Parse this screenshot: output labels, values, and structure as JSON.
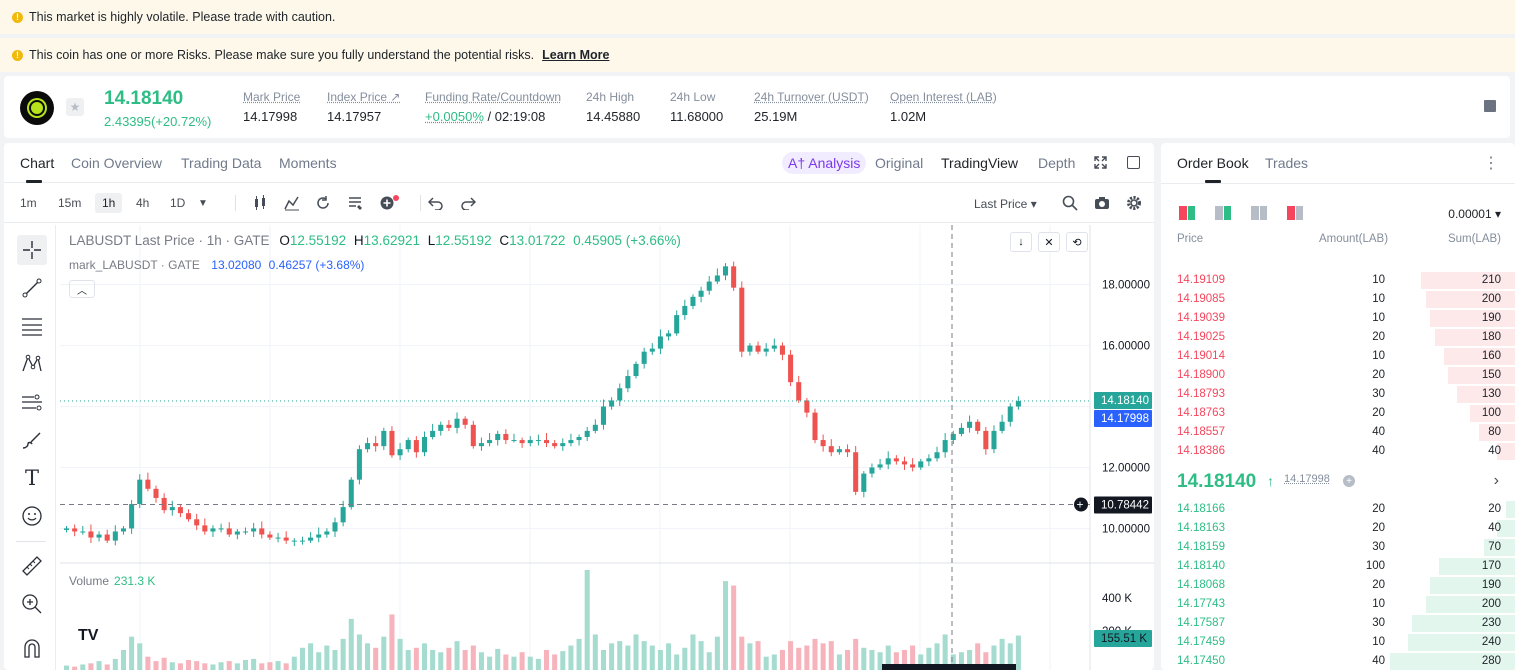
{
  "banners": {
    "volatile": "This market is highly volatile. Please trade with caution.",
    "risk": "This coin has one or more Risks. Please make sure you fully understand the potential risks.",
    "learn_more": "Learn More"
  },
  "ticker": {
    "last_price": "14.18140",
    "change": "2.43395(+20.72%)",
    "stats": [
      {
        "label": "Mark Price",
        "value": "14.17998"
      },
      {
        "label": "Index Price ↗",
        "value": "14.17957"
      },
      {
        "label": "Funding Rate/Countdown",
        "value_green": "+0.0050%",
        "value": " / 02:19:08"
      },
      {
        "label": "24h High",
        "value": "14.45880"
      },
      {
        "label": "24h Low",
        "value": "11.68000"
      },
      {
        "label": "24h Turnover (USDT)",
        "value": "25.19M"
      },
      {
        "label": "Open Interest (LAB)",
        "value": "1.02M"
      }
    ]
  },
  "chart_tabs": [
    "Chart",
    "Coin Overview",
    "Trading Data",
    "Moments"
  ],
  "view_tabs": {
    "analysis": "A† Analysis",
    "original": "Original",
    "tradingview": "TradingView",
    "depth": "Depth"
  },
  "timeframes": [
    "1m",
    "15m",
    "1h",
    "4h",
    "1D"
  ],
  "toolbar": {
    "last_price": "Last Price ▾"
  },
  "legend": {
    "symbol": "LABUSDT Last Price · 1h · GATE",
    "o_label": "O",
    "o": "12.55192",
    "h_label": "H",
    "h": "13.62921",
    "l_label": "L",
    "l": "12.55192",
    "c_label": "C",
    "c": "13.01722",
    "chg": "0.45905 (+3.66%)",
    "mark_symbol": "mark_LABUSDT · GATE",
    "mark_value": "13.02080",
    "mark_chg": "0.46257 (+3.68%)",
    "volume_label": "Volume",
    "volume_value": "231.3 K"
  },
  "chart_data": {
    "type": "candlestick",
    "y_ticks": [
      "18.00000",
      "16.00000",
      "12.00000",
      "10.00000"
    ],
    "volume_ticks": [
      "400 K",
      "200 K"
    ],
    "ylim": [
      8.8,
      19.3
    ],
    "last_price_tag": "14.18140",
    "mark_price_tag": "14.17998",
    "crosshair_tag": "10.78442",
    "volume_tag": "155.51 K",
    "last_price": 14.1814,
    "crosshair_price": 10.78442,
    "up_color": "#26a69a",
    "down_color": "#ef5350",
    "close_path": [
      10.0,
      9.9,
      9.9,
      9.7,
      9.8,
      9.6,
      9.9,
      10.0,
      10.8,
      11.6,
      11.3,
      11.0,
      10.6,
      10.7,
      10.5,
      10.3,
      10.1,
      9.9,
      10.0,
      10.0,
      9.8,
      9.9,
      9.9,
      10.0,
      9.8,
      9.7,
      9.7,
      9.6,
      9.6,
      9.6,
      9.7,
      9.8,
      9.9,
      10.2,
      10.7,
      11.6,
      12.6,
      12.8,
      12.7,
      13.2,
      12.4,
      12.6,
      12.9,
      12.5,
      13.0,
      13.2,
      13.4,
      13.3,
      13.6,
      13.4,
      12.7,
      12.8,
      12.9,
      13.1,
      12.9,
      12.9,
      12.8,
      12.9,
      12.9,
      12.8,
      12.7,
      12.8,
      12.9,
      13.0,
      13.2,
      13.4,
      14.0,
      14.2,
      14.6,
      15.0,
      15.4,
      15.8,
      15.9,
      16.3,
      16.4,
      17.0,
      17.3,
      17.6,
      17.8,
      18.1,
      18.3,
      18.6,
      17.9,
      15.8,
      16.0,
      15.8,
      15.9,
      16.0,
      15.7,
      14.8,
      14.2,
      13.8,
      12.9,
      12.7,
      12.5,
      12.6,
      12.5,
      11.2,
      11.8,
      12.0,
      12.1,
      12.3,
      12.2,
      12.1,
      12.0,
      12.2,
      12.3,
      12.5,
      12.9,
      13.1,
      13.3,
      13.5,
      13.2,
      12.6,
      13.2,
      13.5,
      14.0,
      14.18
    ],
    "volumes": [
      20,
      15,
      25,
      30,
      40,
      25,
      50,
      90,
      150,
      120,
      60,
      40,
      55,
      35,
      30,
      45,
      40,
      30,
      25,
      35,
      40,
      30,
      45,
      50,
      30,
      35,
      40,
      30,
      60,
      100,
      120,
      80,
      110,
      90,
      140,
      230,
      160,
      120,
      100,
      150,
      250,
      140,
      90,
      100,
      120,
      90,
      80,
      100,
      130,
      90,
      110,
      80,
      60,
      95,
      70,
      60,
      80,
      60,
      50,
      90,
      70,
      85,
      110,
      140,
      450,
      160,
      90,
      120,
      130,
      110,
      160,
      130,
      110,
      90,
      120,
      70,
      100,
      160,
      130,
      80,
      150,
      400,
      380,
      150,
      120,
      130,
      60,
      70,
      90,
      130,
      100,
      110,
      140,
      120,
      130,
      70,
      90,
      140,
      100,
      90,
      80,
      110,
      80,
      90,
      110,
      70,
      100,
      120,
      160,
      70,
      80,
      90,
      120,
      80,
      110,
      140,
      120,
      155
    ]
  },
  "orderbook": {
    "tabs": [
      "Order Book",
      "Trades"
    ],
    "precision": "0.00001 ▾",
    "headers": {
      "price": "Price",
      "amount": "Amount(LAB)",
      "sum": "Sum(LAB)"
    },
    "asks": [
      {
        "price": "14.19109",
        "amount": "10",
        "sum": "210"
      },
      {
        "price": "14.19085",
        "amount": "10",
        "sum": "200"
      },
      {
        "price": "14.19039",
        "amount": "10",
        "sum": "190"
      },
      {
        "price": "14.19025",
        "amount": "20",
        "sum": "180"
      },
      {
        "price": "14.19014",
        "amount": "10",
        "sum": "160"
      },
      {
        "price": "14.18900",
        "amount": "20",
        "sum": "150"
      },
      {
        "price": "14.18793",
        "amount": "30",
        "sum": "130"
      },
      {
        "price": "14.18763",
        "amount": "20",
        "sum": "100"
      },
      {
        "price": "14.18557",
        "amount": "40",
        "sum": "80"
      },
      {
        "price": "14.18386",
        "amount": "40",
        "sum": "40"
      }
    ],
    "mid": {
      "price": "14.18140",
      "arrow": "↑",
      "mark": "14.17998",
      "chevron": "›"
    },
    "bids": [
      {
        "price": "14.18166",
        "amount": "20",
        "sum": "20"
      },
      {
        "price": "14.18163",
        "amount": "20",
        "sum": "40"
      },
      {
        "price": "14.18159",
        "amount": "30",
        "sum": "70"
      },
      {
        "price": "14.18140",
        "amount": "100",
        "sum": "170"
      },
      {
        "price": "14.18068",
        "amount": "20",
        "sum": "190"
      },
      {
        "price": "14.17743",
        "amount": "10",
        "sum": "200"
      },
      {
        "price": "14.17587",
        "amount": "30",
        "sum": "230"
      },
      {
        "price": "14.17459",
        "amount": "10",
        "sum": "240"
      },
      {
        "price": "14.17450",
        "amount": "40",
        "sum": "280"
      }
    ],
    "ask_color": "#f6465d",
    "bid_color": "#2ebd85",
    "max_sum": 280
  }
}
